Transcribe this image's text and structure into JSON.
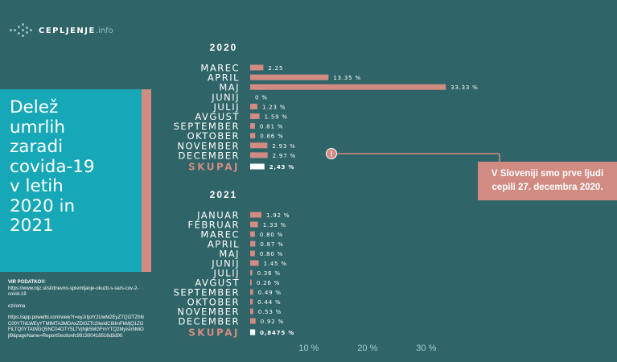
{
  "brand": {
    "name": "CEPLJENJE",
    "suffix": ".info"
  },
  "title": "Delež\numrlih\nzaradi\ncovida-19\nv letih\n2020 in\n2021",
  "sources": {
    "heading": "VIR PODATKOV:",
    "url1": "https://www.nijz.si/sl/dnevno-spremljanje-okuzb-s-sars-cov-2-covid-19",
    "or": "oziroma",
    "url2": "https://app.powerbi.com/view?r=eyJrIjoiY2UwM2EyZTQtZTZhNC00YThlLWEyYTMtMTA3MDAxZDI0ZTc2IiwidCI6ImFkMjQ1ZGFlLTQ0YTAtNGQ5NC04OTY5LTVjNjk5MGFmYTQ2MyIsImMiOjl9&pageName=ReportSectionfc991300418516d3d90"
  },
  "annotation": {
    "marker": "!",
    "text": "V Sloveniji smo prve ljudi\ncepili 27. decembra 2020."
  },
  "colors": {
    "background": "#2f6468",
    "bar": "#d28b83",
    "total_bar": "#ffffff",
    "title_panel": "#17a8b8",
    "axis_text": "#9fcfd2",
    "total_label": "#d28b83"
  },
  "chart_data": [
    {
      "type": "bar",
      "orientation": "horizontal",
      "title": "2020",
      "categories": [
        "MAREC",
        "APRIL",
        "MAJ",
        "JUNIJ",
        "JULIJ",
        "AVGUST",
        "SEPTEMBER",
        "OKTOBER",
        "NOVEMBER",
        "DECEMBER"
      ],
      "values": [
        2.25,
        13.35,
        33.33,
        0,
        1.23,
        1.59,
        0.81,
        0.86,
        2.93,
        2.97
      ],
      "value_labels": [
        "2.25",
        "13.35 %",
        "33.33 %",
        "0 %",
        "1.23 %",
        "1.59 %",
        "0.81 %",
        "0.86 %",
        "2.93 %",
        "2.97 %"
      ],
      "total": {
        "label": "SKUPAJ",
        "value": 2.43,
        "value_label": "2,43 %"
      }
    },
    {
      "type": "bar",
      "orientation": "horizontal",
      "title": "2021",
      "categories": [
        "JANUAR",
        "FEBRUAR",
        "MAREC",
        "APRIL",
        "MAJ",
        "JUNIJ",
        "JULIJ",
        "AVGUST",
        "SEPTEMBER",
        "OKTOBER",
        "NOVEMBER",
        "DECEMBER"
      ],
      "values": [
        1.92,
        1.33,
        0.8,
        0.87,
        0.8,
        1.45,
        0.36,
        0.26,
        0.49,
        0.44,
        0.53,
        0.92
      ],
      "value_labels": [
        "1.92 %",
        "1.33 %",
        "0.80 %",
        "0.87 %",
        "0.80 %",
        "1.45 %",
        "0.36 %",
        "0.26 %",
        "0.49 %",
        "0.44 %",
        "0.53 %",
        "0.92 %"
      ],
      "total": {
        "label": "SKUPAJ",
        "value": 0.8475,
        "value_label": "0,8475 %"
      }
    }
  ],
  "axis": {
    "ticks": [
      10,
      20,
      30
    ],
    "tick_labels": [
      "10 %",
      "20 %",
      "30 %"
    ],
    "xlim": [
      0,
      34
    ]
  }
}
